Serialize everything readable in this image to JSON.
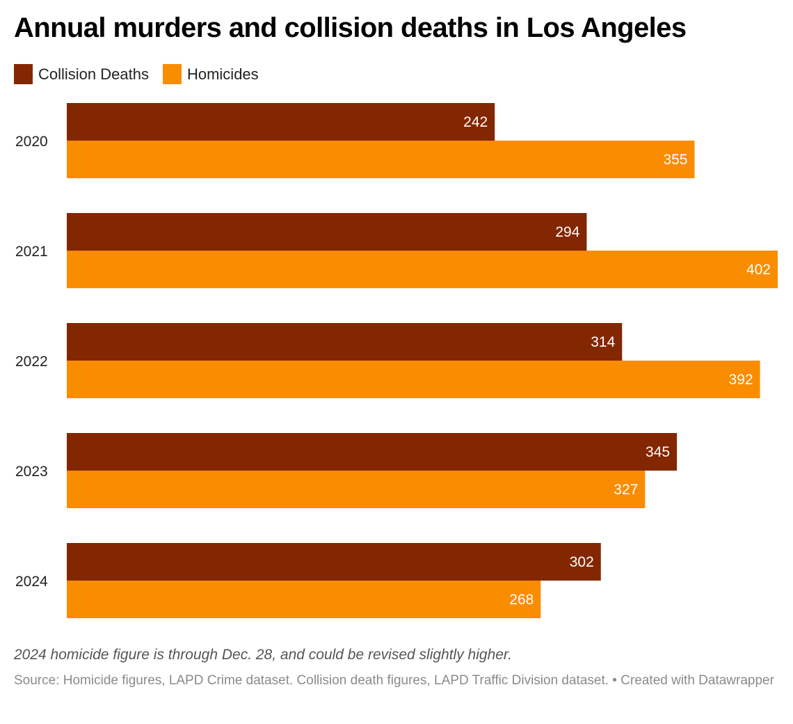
{
  "chart_data": {
    "type": "bar",
    "orientation": "horizontal",
    "title": "Annual murders and collision deaths in Los Angeles",
    "categories": [
      "2020",
      "2021",
      "2022",
      "2023",
      "2024"
    ],
    "series": [
      {
        "name": "Collision Deaths",
        "color": "#832700",
        "values": [
          242,
          294,
          314,
          345,
          302
        ]
      },
      {
        "name": "Homicides",
        "color": "#fa8c00",
        "values": [
          355,
          402,
          392,
          327,
          268
        ]
      }
    ],
    "xlabel": "",
    "ylabel": "",
    "xlim": [
      0,
      402
    ],
    "grid": false,
    "legend_position": "top-left",
    "data_labels": true
  },
  "header": {
    "title": "Annual murders and collision deaths in Los Angeles"
  },
  "legend": [
    {
      "label": "Collision Deaths",
      "color": "#832700"
    },
    {
      "label": "Homicides",
      "color": "#fa8c00"
    }
  ],
  "footer": {
    "note": "2024 homicide figure is through Dec. 28, and could be revised slightly higher.",
    "source": "Source: Homicide figures, LAPD Crime dataset. Collision death figures, LAPD Traffic Division dataset. • Created with Datawrapper"
  }
}
